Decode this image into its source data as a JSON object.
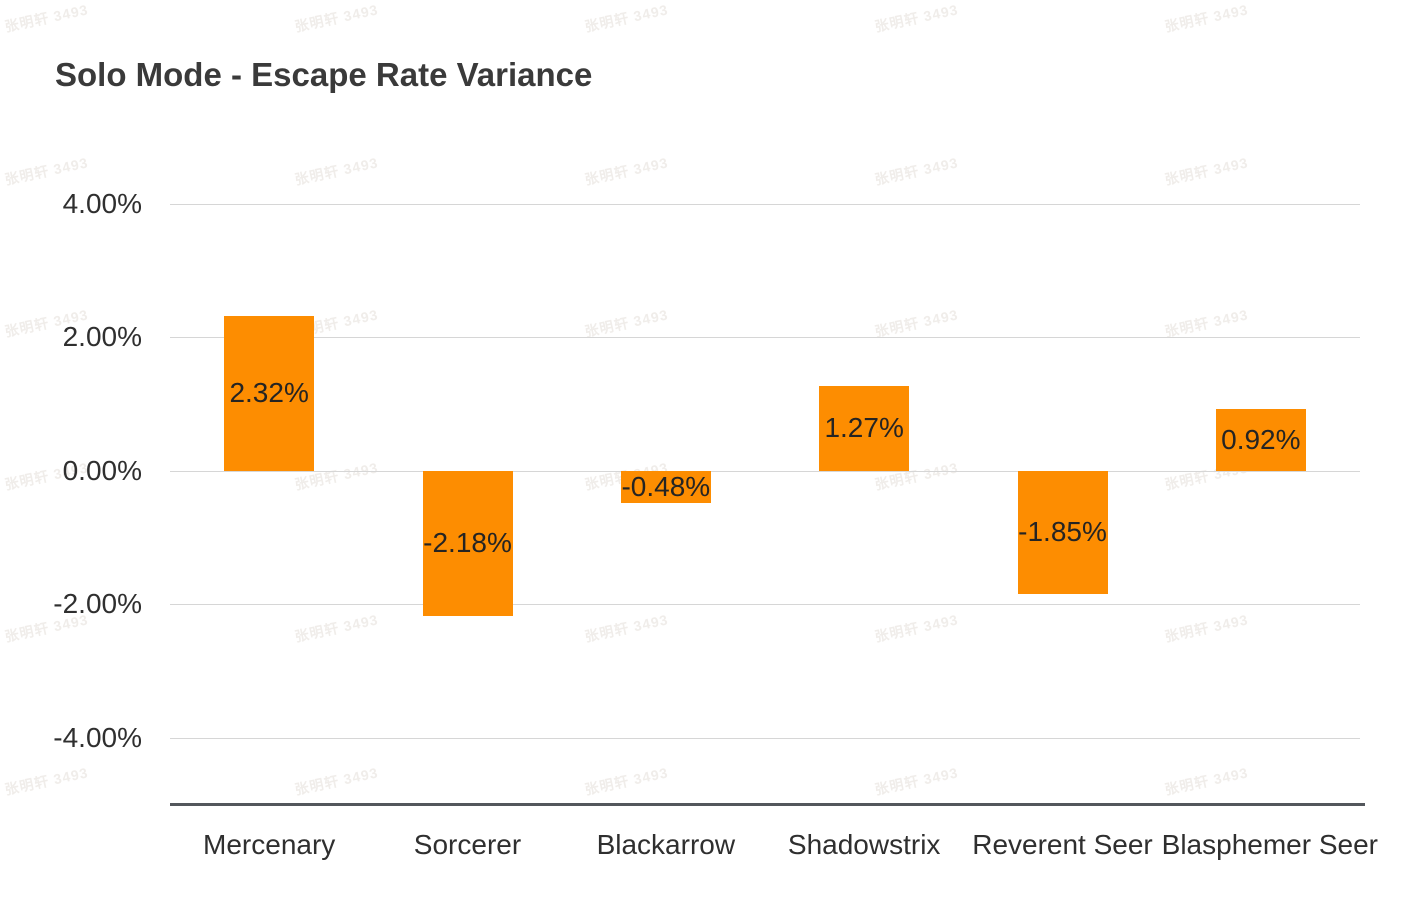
{
  "watermark": {
    "text": "张明轩 3493"
  },
  "chart_data": {
    "type": "bar",
    "title": "Solo Mode - Escape Rate Variance",
    "categories": [
      "Mercenary",
      "Sorcerer",
      "Blackarrow",
      "Shadowstrix",
      "Reverent Seer",
      "Blasphemer Seer"
    ],
    "values": [
      2.32,
      -2.18,
      -0.48,
      1.27,
      -1.85,
      0.92
    ],
    "value_labels": [
      "2.32%",
      "-2.18%",
      "-0.48%",
      "1.27%",
      "-1.85%",
      "0.92%"
    ],
    "xlabel": "",
    "ylabel": "",
    "ylim": [
      -5,
      4.5
    ],
    "y_ticks": [
      {
        "value": 4,
        "label": "4.00%"
      },
      {
        "value": 2,
        "label": "2.00%"
      },
      {
        "value": 0,
        "label": "0.00%"
      },
      {
        "value": -2,
        "label": "-2.00%"
      },
      {
        "value": -4,
        "label": "-4.00%"
      }
    ],
    "grid": true,
    "legend": false,
    "colors": {
      "bar": "#FD8D01",
      "data_label": "#252423",
      "axis_text": "#2F2F2F",
      "gridline": "#D6D6D6",
      "axis_line": "#53575C",
      "title": "#3A3A3A",
      "background": "#FFFFFF",
      "watermark": "#F0EDEA"
    }
  }
}
